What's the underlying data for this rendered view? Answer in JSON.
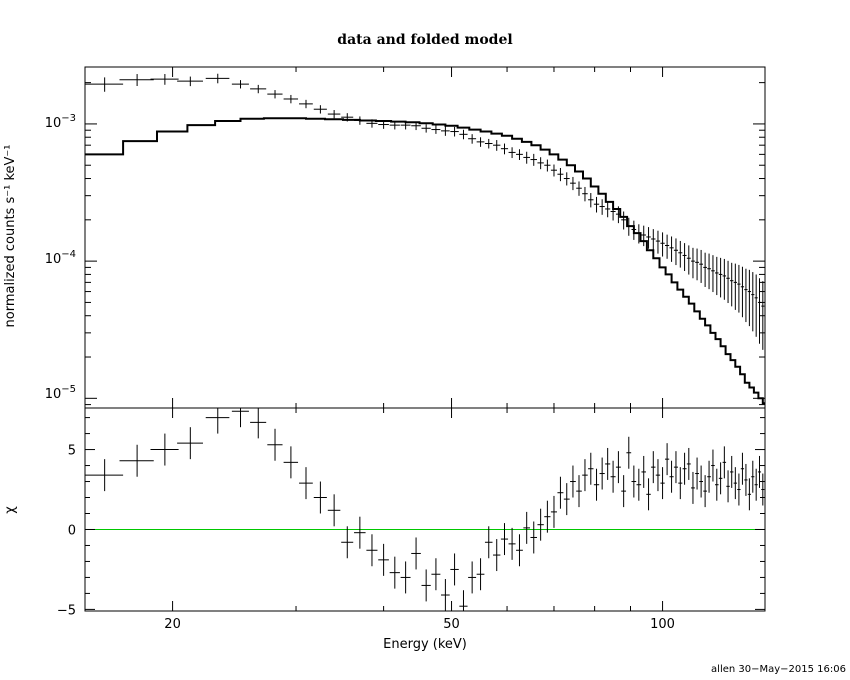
{
  "chart_data": [
    {
      "type": "scatter",
      "title": "data and folded model",
      "ylabel": "normalized counts s⁻¹ keV⁻¹",
      "xscale": "log",
      "yscale": "log",
      "xlim": [
        15,
        140
      ],
      "ylim": [
        8.5e-06,
        0.0026
      ],
      "ytick_labels": [
        {
          "base": "10",
          "exp": "−3"
        },
        {
          "base": "10",
          "exp": "−4"
        },
        {
          "base": "10",
          "exp": "−5"
        }
      ],
      "series": [
        {
          "kind": "data-with-errors",
          "x": [
            16.0,
            17.8,
            19.5,
            21.2,
            23.2,
            25.0,
            26.5,
            28.0,
            29.5,
            31.0,
            32.5,
            34.0,
            35.5,
            37.0,
            38.5,
            40.0,
            41.5,
            43.0,
            44.5,
            46.0,
            47.5,
            49.0,
            50.5,
            52.0,
            53.5,
            55.0,
            56.5,
            58.0,
            59.5,
            61.0,
            62.5,
            64.0,
            65.5,
            67.0,
            68.5,
            70.0,
            71.5,
            73.0,
            74.5,
            76.0,
            77.5,
            79.0,
            80.5,
            82.0,
            83.5,
            85.0,
            86.5,
            88.0,
            89.5,
            91.0,
            92.5,
            94.0,
            95.5,
            97.0,
            98.5,
            100.0,
            101.5,
            103.0,
            104.5,
            106.0,
            107.5,
            109.0,
            110.5,
            112.0,
            113.5,
            115.0,
            116.5,
            118.0,
            119.5,
            121.0,
            122.5,
            124.0,
            125.5,
            127.0,
            128.5,
            130.0,
            131.5,
            133.0,
            134.5,
            136.0,
            137.5,
            139.0
          ],
          "xerr": [
            1.0,
            1.0,
            0.9,
            0.9,
            0.9,
            0.7,
            0.7,
            0.7,
            0.7,
            0.7,
            0.7,
            0.7,
            0.7,
            0.7,
            0.7,
            0.7,
            0.7,
            0.7,
            0.7,
            0.7,
            0.7,
            0.7,
            0.7,
            0.7,
            0.7,
            0.7,
            0.7,
            0.7,
            0.7,
            0.7,
            0.7,
            0.7,
            0.7,
            0.7,
            0.7,
            0.7,
            0.7,
            0.7,
            0.7,
            0.7,
            0.7,
            0.7,
            0.7,
            0.7,
            0.7,
            0.7,
            0.7,
            0.7,
            0.7,
            0.7,
            0.7,
            0.7,
            0.7,
            0.7,
            0.7,
            0.7,
            0.7,
            0.7,
            0.7,
            0.7,
            0.7,
            0.7,
            0.7,
            0.7,
            0.7,
            0.7,
            0.7,
            0.7,
            0.7,
            0.7,
            0.7,
            0.7,
            0.7,
            0.7,
            0.7,
            0.7,
            0.7,
            0.7,
            0.7,
            0.7,
            0.7,
            0.7
          ],
          "y": [
            0.00195,
            0.0021,
            0.00212,
            0.00205,
            0.00215,
            0.00195,
            0.0018,
            0.00165,
            0.00152,
            0.0014,
            0.00128,
            0.00118,
            0.00112,
            0.00106,
            0.00101,
            0.00099,
            0.00098,
            0.00098,
            0.00097,
            0.00093,
            0.00091,
            0.00089,
            0.00088,
            0.00084,
            0.00078,
            0.00074,
            0.00072,
            0.0007,
            0.00066,
            0.00062,
            0.0006,
            0.00057,
            0.00055,
            0.00052,
            0.0005,
            0.00046,
            0.00043,
            0.0004,
            0.00037,
            0.00034,
            0.00031,
            0.00028,
            0.00026,
            0.00025,
            0.00024,
            0.00023,
            0.00022,
            0.0002,
            0.00018,
            0.00017,
            0.00016,
            0.000155,
            0.00015,
            0.000145,
            0.00014,
            0.000135,
            0.00013,
            0.000125,
            0.00012,
            0.000115,
            0.00011,
            0.000105,
            0.0001,
            9.8e-05,
            9.5e-05,
            9e-05,
            8.8e-05,
            8.5e-05,
            8.2e-05,
            8e-05,
            7.8e-05,
            7.5e-05,
            7.2e-05,
            7e-05,
            6.8e-05,
            6.5e-05,
            6.2e-05,
            6e-05,
            5.7e-05,
            5.4e-05,
            5e-05,
            4.7e-05
          ],
          "yerr_frac": [
            0.12,
            0.1,
            0.09,
            0.08,
            0.08,
            0.07,
            0.07,
            0.07,
            0.07,
            0.07,
            0.07,
            0.07,
            0.07,
            0.07,
            0.07,
            0.07,
            0.07,
            0.07,
            0.07,
            0.07,
            0.07,
            0.08,
            0.08,
            0.08,
            0.08,
            0.08,
            0.08,
            0.09,
            0.09,
            0.09,
            0.09,
            0.1,
            0.1,
            0.1,
            0.1,
            0.1,
            0.11,
            0.11,
            0.11,
            0.12,
            0.12,
            0.12,
            0.13,
            0.13,
            0.13,
            0.14,
            0.14,
            0.15,
            0.15,
            0.16,
            0.16,
            0.17,
            0.18,
            0.18,
            0.19,
            0.2,
            0.2,
            0.21,
            0.22,
            0.22,
            0.23,
            0.24,
            0.25,
            0.26,
            0.27,
            0.28,
            0.29,
            0.3,
            0.31,
            0.32,
            0.33,
            0.34,
            0.35,
            0.37,
            0.38,
            0.4,
            0.42,
            0.44,
            0.46,
            0.48,
            0.5,
            0.52
          ]
        },
        {
          "kind": "model-step",
          "x": [
            15.0,
            17.0,
            19.0,
            21.0,
            23.0,
            25.0,
            27.0,
            29.0,
            31.0,
            33.0,
            35.0,
            37.0,
            39.0,
            41.0,
            43.0,
            45.0,
            47.0,
            49.0,
            51.0,
            53.0,
            55.0,
            57.0,
            59.0,
            61.0,
            63.0,
            65.0,
            67.0,
            69.0,
            71.0,
            73.0,
            75.0,
            77.0,
            79.0,
            81.0,
            83.0,
            85.0,
            87.0,
            89.0,
            91.0,
            93.0,
            95.0,
            97.0,
            99.0,
            101.0,
            103.0,
            105.0,
            107.0,
            109.0,
            111.0,
            113.0,
            115.0,
            117.0,
            119.0,
            121.0,
            123.0,
            125.0,
            127.0,
            129.0,
            131.0,
            133.0,
            135.0,
            137.0,
            139.0,
            140.0
          ],
          "y": [
            0.0006,
            0.00075,
            0.00088,
            0.00098,
            0.00105,
            0.00109,
            0.0011,
            0.0011,
            0.00109,
            0.00108,
            0.00107,
            0.00106,
            0.00105,
            0.00104,
            0.00103,
            0.00101,
            0.00099,
            0.00097,
            0.00094,
            0.00091,
            0.00088,
            0.00085,
            0.00082,
            0.00078,
            0.00074,
            0.0007,
            0.00065,
            0.0006,
            0.00055,
            0.0005,
            0.00045,
            0.0004,
            0.00035,
            0.00031,
            0.00027,
            0.00024,
            0.00021,
            0.00018,
            0.00016,
            0.00014,
            0.00012,
            0.000105,
            9e-05,
            8e-05,
            7e-05,
            6.2e-05,
            5.5e-05,
            4.9e-05,
            4.3e-05,
            3.8e-05,
            3.4e-05,
            3e-05,
            2.7e-05,
            2.4e-05,
            2.1e-05,
            1.9e-05,
            1.7e-05,
            1.5e-05,
            1.3e-05,
            1.2e-05,
            1.1e-05,
            1e-05,
            9.2e-06,
            8.8e-06
          ]
        }
      ]
    },
    {
      "type": "scatter",
      "xlabel": "Energy (keV)",
      "ylabel": "χ",
      "xscale": "log",
      "xlim": [
        15,
        140
      ],
      "ylim": [
        -5.1,
        7.6
      ],
      "xticks": [
        20,
        50,
        100
      ],
      "xtick_labels": [
        "20",
        "50",
        "100"
      ],
      "yticks": [
        5,
        0,
        -5
      ],
      "ytick_labels": [
        "5",
        "0",
        "−5"
      ],
      "zero_line_color": "#00c800",
      "series": [
        {
          "kind": "residuals",
          "x": [
            16.0,
            17.8,
            19.5,
            21.2,
            23.2,
            25.0,
            26.5,
            28.0,
            29.5,
            31.0,
            32.5,
            34.0,
            35.5,
            37.0,
            38.5,
            40.0,
            41.5,
            43.0,
            44.5,
            46.0,
            47.5,
            49.0,
            50.5,
            52.0,
            53.5,
            55.0,
            56.5,
            58.0,
            59.5,
            61.0,
            62.5,
            64.0,
            65.5,
            67.0,
            68.5,
            70.0,
            71.5,
            73.0,
            74.5,
            76.0,
            77.5,
            79.0,
            80.5,
            82.0,
            83.5,
            85.0,
            86.5,
            88.0,
            89.5,
            91.0,
            92.5,
            94.0,
            95.5,
            97.0,
            98.5,
            100.0,
            101.5,
            103.0,
            104.5,
            106.0,
            107.5,
            109.0,
            110.5,
            112.0,
            113.5,
            115.0,
            116.5,
            118.0,
            119.5,
            121.0,
            122.5,
            124.0,
            125.5,
            127.0,
            128.5,
            130.0,
            131.5,
            133.0,
            134.5,
            136.0,
            137.5,
            139.0
          ],
          "xerr": [
            1.0,
            1.0,
            0.9,
            0.9,
            0.9,
            0.7,
            0.7,
            0.7,
            0.7,
            0.7,
            0.7,
            0.7,
            0.7,
            0.7,
            0.7,
            0.7,
            0.7,
            0.7,
            0.7,
            0.7,
            0.7,
            0.7,
            0.7,
            0.7,
            0.7,
            0.7,
            0.7,
            0.7,
            0.7,
            0.7,
            0.7,
            0.7,
            0.7,
            0.7,
            0.7,
            0.7,
            0.7,
            0.7,
            0.7,
            0.7,
            0.7,
            0.7,
            0.7,
            0.7,
            0.7,
            0.7,
            0.7,
            0.7,
            0.7,
            0.7,
            0.7,
            0.7,
            0.7,
            0.7,
            0.7,
            0.7,
            0.7,
            0.7,
            0.7,
            0.7,
            0.7,
            0.7,
            0.7,
            0.7,
            0.7,
            0.7,
            0.7,
            0.7,
            0.7,
            0.7,
            0.7,
            0.7,
            0.7,
            0.7,
            0.7,
            0.7,
            0.7,
            0.7,
            0.7,
            0.7,
            0.7,
            0.7
          ],
          "y": [
            3.4,
            4.3,
            5.0,
            5.4,
            7.0,
            7.4,
            6.7,
            5.3,
            4.2,
            2.9,
            2.0,
            1.2,
            -0.8,
            -0.2,
            -1.3,
            -1.9,
            -2.7,
            -3.0,
            -1.5,
            -3.5,
            -2.8,
            -4.1,
            -2.5,
            -4.8,
            -3.0,
            -2.8,
            -0.8,
            -1.6,
            -0.6,
            -0.9,
            -1.3,
            0.1,
            -0.5,
            0.3,
            0.8,
            1.1,
            2.3,
            1.9,
            3.0,
            2.4,
            3.4,
            3.8,
            2.8,
            3.5,
            4.1,
            3.3,
            3.9,
            2.4,
            4.8,
            3.0,
            2.8,
            3.6,
            2.2,
            3.9,
            3.4,
            2.9,
            4.4,
            3.3,
            3.9,
            2.9,
            3.8,
            4.1,
            2.6,
            3.5,
            3.0,
            2.4,
            3.3,
            4.0,
            2.8,
            3.2,
            4.2,
            2.7,
            3.6,
            2.9,
            2.5,
            3.8,
            3.1,
            2.2,
            3.3,
            2.8,
            3.6,
            2.5
          ],
          "yerr": [
            1.0,
            1.0,
            1.0,
            1.0,
            1.0,
            1.0,
            1.0,
            1.0,
            1.0,
            1.0,
            1.0,
            1.0,
            1.0,
            1.0,
            1.0,
            1.0,
            1.0,
            1.0,
            1.0,
            1.0,
            1.0,
            1.0,
            1.0,
            1.0,
            1.0,
            1.0,
            1.0,
            1.0,
            1.0,
            1.0,
            1.0,
            1.0,
            1.0,
            1.0,
            1.0,
            1.0,
            1.0,
            1.0,
            1.0,
            1.0,
            1.0,
            1.0,
            1.0,
            1.0,
            1.0,
            1.0,
            1.0,
            1.0,
            1.0,
            1.0,
            1.0,
            1.0,
            1.0,
            1.0,
            1.0,
            1.0,
            1.0,
            1.0,
            1.0,
            1.0,
            1.0,
            1.0,
            1.0,
            1.0,
            1.0,
            1.0,
            1.0,
            1.0,
            1.0,
            1.0,
            1.0,
            1.0,
            1.0,
            1.0,
            1.0,
            1.0,
            1.0,
            1.0,
            1.0,
            1.0,
            1.0,
            1.0
          ]
        }
      ]
    }
  ],
  "credit": "allen 30−May−2015 16:06"
}
